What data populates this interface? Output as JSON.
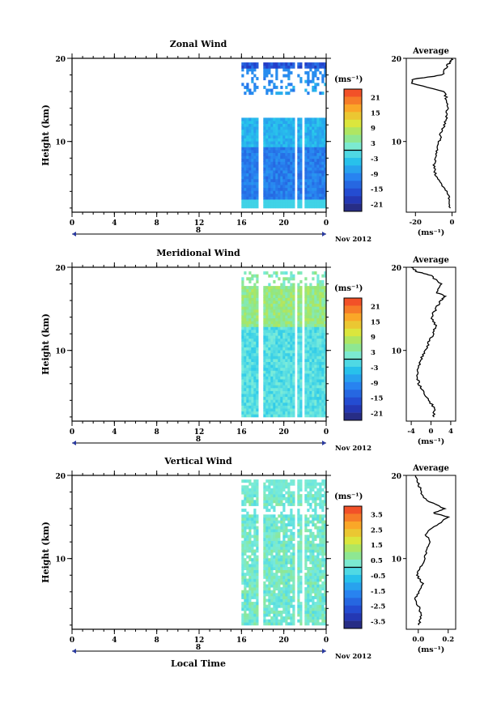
{
  "figure": {
    "xlabel_bottom": "Local Time",
    "date_label": "Nov 2012",
    "height_label": "Height (km)",
    "unit_label": "(ms⁻¹)",
    "avg_title": "Average"
  },
  "chart_data": [
    {
      "type": "heatmap",
      "title": "Zonal Wind",
      "ylabel": "Height (km)",
      "x_ticks": [
        "0",
        "4",
        "8",
        "12",
        "16",
        "20",
        "0"
      ],
      "day_label": "8",
      "date_label": "Nov 2012",
      "xlim": [
        0,
        24
      ],
      "ylim": [
        1.5,
        20
      ],
      "y_ticks": [
        "10",
        "20"
      ],
      "data_start_hour": 16,
      "colorbar": {
        "unit": "(ms⁻¹)",
        "ticks": [
          "21",
          "15",
          "9",
          "3",
          "-3",
          "-9",
          "-15",
          "-21"
        ],
        "range": [
          -24,
          24
        ]
      },
      "average": {
        "title": "Average",
        "xlabel": "(ms⁻¹)",
        "x_ticks": [
          "-20",
          "0"
        ],
        "xlim": [
          -25,
          2
        ],
        "profile": [
          [
            -1,
            2
          ],
          [
            -1.5,
            3
          ],
          [
            -3,
            4
          ],
          [
            -6,
            5
          ],
          [
            -9,
            6
          ],
          [
            -10,
            7
          ],
          [
            -9,
            8
          ],
          [
            -8,
            9
          ],
          [
            -7,
            10
          ],
          [
            -6,
            11
          ],
          [
            -4,
            12
          ],
          [
            -3,
            13
          ],
          [
            -2.5,
            14
          ],
          [
            -3,
            15
          ],
          [
            -4,
            16
          ],
          [
            -22,
            17
          ],
          [
            -21,
            17.5
          ],
          [
            -5,
            18
          ],
          [
            -3,
            19
          ],
          [
            -1,
            19.6
          ],
          [
            0,
            20
          ]
        ]
      }
    },
    {
      "type": "heatmap",
      "title": "Meridional Wind",
      "ylabel": "Height (km)",
      "x_ticks": [
        "0",
        "4",
        "8",
        "12",
        "16",
        "20",
        "0"
      ],
      "day_label": "8",
      "date_label": "Nov 2012",
      "xlim": [
        0,
        24
      ],
      "ylim": [
        1.5,
        20
      ],
      "y_ticks": [
        "10",
        "20"
      ],
      "data_start_hour": 16,
      "colorbar": {
        "unit": "(ms⁻¹)",
        "ticks": [
          "21",
          "15",
          "9",
          "3",
          "-3",
          "-9",
          "-15",
          "-21"
        ],
        "range": [
          -24,
          24
        ]
      },
      "average": {
        "title": "Average",
        "xlabel": "(ms⁻¹)",
        "x_ticks": [
          "-4",
          "0",
          "4"
        ],
        "xlim": [
          -5,
          5
        ],
        "profile": [
          [
            0.5,
            2
          ],
          [
            0.8,
            3
          ],
          [
            -0.5,
            4
          ],
          [
            -1.5,
            5
          ],
          [
            -2.5,
            6
          ],
          [
            -2.8,
            7
          ],
          [
            -2.5,
            8
          ],
          [
            -2,
            9
          ],
          [
            -1,
            10
          ],
          [
            -0.5,
            11
          ],
          [
            0.5,
            12
          ],
          [
            1,
            13
          ],
          [
            0,
            14
          ],
          [
            1,
            15
          ],
          [
            2,
            16
          ],
          [
            3,
            16.5
          ],
          [
            1,
            17
          ],
          [
            2,
            18
          ],
          [
            0,
            19
          ],
          [
            -3,
            19.5
          ],
          [
            -4,
            20
          ]
        ]
      }
    },
    {
      "type": "heatmap",
      "title": "Vertical Wind",
      "ylabel": "Height (km)",
      "x_ticks": [
        "0",
        "4",
        "8",
        "12",
        "16",
        "20",
        "0"
      ],
      "day_label": "8",
      "date_label": "Nov 2012",
      "xlim": [
        0,
        24
      ],
      "ylim": [
        1.5,
        20
      ],
      "y_ticks": [
        "10",
        "20"
      ],
      "data_start_hour": 16,
      "colorbar": {
        "unit": "(ms⁻¹)",
        "ticks": [
          "3.5",
          "2.5",
          "1.5",
          "0.5",
          "-0.5",
          "-1.5",
          "-2.5",
          "-3.5"
        ],
        "range": [
          -4,
          4
        ]
      },
      "average": {
        "title": "Average",
        "xlabel": "(ms⁻¹)",
        "x_ticks": [
          "0.0",
          "0.2"
        ],
        "xlim": [
          -0.08,
          0.25
        ],
        "profile": [
          [
            0.0,
            2
          ],
          [
            0.02,
            3
          ],
          [
            0.01,
            4
          ],
          [
            -0.02,
            5
          ],
          [
            0.0,
            6
          ],
          [
            0.03,
            7
          ],
          [
            -0.01,
            8
          ],
          [
            0.02,
            9
          ],
          [
            0.04,
            10
          ],
          [
            0.06,
            11
          ],
          [
            0.08,
            12
          ],
          [
            0.05,
            13
          ],
          [
            0.12,
            14
          ],
          [
            0.2,
            15
          ],
          [
            0.1,
            15.5
          ],
          [
            0.18,
            16
          ],
          [
            0.05,
            17
          ],
          [
            0.02,
            18
          ],
          [
            0.0,
            19
          ],
          [
            -0.02,
            20
          ]
        ]
      }
    }
  ]
}
